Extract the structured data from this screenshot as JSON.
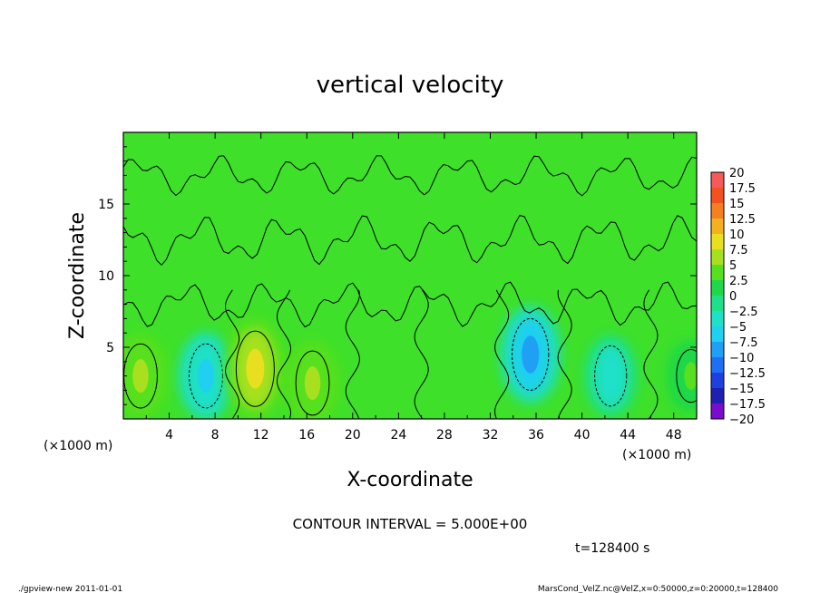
{
  "chart_data": {
    "type": "heatmap",
    "title": "vertical velocity",
    "xlabel": "X-coordinate",
    "ylabel": "Z-coordinate",
    "x_unit": "(×1000 m)",
    "y_unit": "(×1000 m)",
    "xlim": [
      0,
      50
    ],
    "ylim": [
      0,
      20
    ],
    "x_ticks": [
      4,
      8,
      12,
      16,
      20,
      24,
      28,
      32,
      36,
      40,
      44,
      48
    ],
    "x_tick_labels": [
      "4",
      "8",
      "12",
      "16",
      "20",
      "24",
      "28",
      "32",
      "36",
      "40",
      "44",
      "48"
    ],
    "y_ticks": [
      5,
      10,
      15
    ],
    "y_tick_labels": [
      "5",
      "10",
      "15"
    ],
    "colorbar": {
      "levels": [
        -20,
        -17.5,
        -15,
        -12.5,
        -10,
        -7.5,
        -5,
        -2.5,
        0,
        2.5,
        5,
        7.5,
        10,
        12.5,
        15,
        17.5,
        20
      ],
      "labels": [
        "20",
        "17.5",
        "15",
        "12.5",
        "10",
        "7.5",
        "5",
        "2.5",
        "0",
        "−2.5",
        "−5",
        "−7.5",
        "−10",
        "−12.5",
        "−15",
        "−17.5",
        "−20"
      ],
      "colors": [
        "#7a0dcc",
        "#1f1fb0",
        "#1f3fe0",
        "#1f6ff5",
        "#1fa0f5",
        "#1fd0f0",
        "#1fe0c8",
        "#1fe08a",
        "#1fd84a",
        "#56e01f",
        "#a8e01f",
        "#e8e01f",
        "#f5b01f",
        "#f5801f",
        "#f5501f",
        "#f55a5a",
        "#f5a0a0"
      ]
    },
    "features": [
      {
        "kind": "updraft",
        "x": 1.5,
        "z": 3.0,
        "value": 6
      },
      {
        "kind": "downdraft",
        "x": 7.2,
        "z": 3.0,
        "value": -6
      },
      {
        "kind": "updraft",
        "x": 11.5,
        "z": 3.5,
        "value": 9
      },
      {
        "kind": "updraft",
        "x": 16.5,
        "z": 2.5,
        "value": 6
      },
      {
        "kind": "downdraft",
        "x": 35.5,
        "z": 4.5,
        "value": -8
      },
      {
        "kind": "downdraft",
        "x": 42.5,
        "z": 3.0,
        "value": -5
      },
      {
        "kind": "updraft",
        "x": 49.5,
        "z": 3.0,
        "value": 3
      }
    ],
    "contour_interval_text": "CONTOUR INTERVAL = 5.000E+00",
    "time_text": "t=128400 s"
  },
  "footer": {
    "left": "./gpview-new   2011-01-01",
    "right": "MarsCond_VelZ.nc@VelZ,x=0:50000,z=0:20000,t=128400"
  }
}
